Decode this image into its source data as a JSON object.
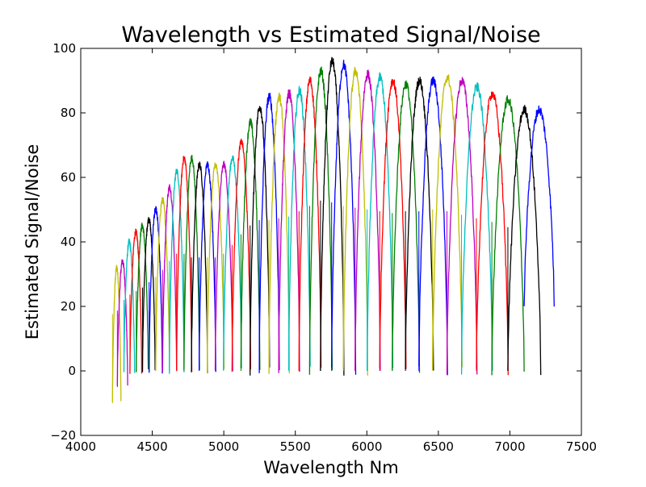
{
  "chart_data": {
    "type": "line",
    "title": "Wavelength vs Estimated Signal/Noise",
    "xlabel": "Wavelength Nm",
    "ylabel": "Estimated Signal/Noise",
    "xlim": [
      4000,
      7500
    ],
    "ylim": [
      -20,
      100
    ],
    "x_ticks": [
      "4000",
      "4500",
      "5000",
      "5500",
      "6000",
      "6500",
      "7000",
      "7500"
    ],
    "y_ticks": [
      "−20",
      "0",
      "20",
      "40",
      "60",
      "80",
      "100"
    ],
    "grid": false,
    "legend": "none",
    "color_cycle": [
      "#bfbf00",
      "#bf00bf",
      "#00bfbf",
      "#ff0000",
      "#008000",
      "#000000",
      "#0000ff"
    ],
    "orders": [
      {
        "start": 4222,
        "end": 4281,
        "peak": 32,
        "min": -10
      },
      {
        "start": 4256,
        "end": 4328,
        "peak": 34,
        "min": -5
      },
      {
        "start": 4302,
        "end": 4376,
        "peak": 40,
        "min": 0
      },
      {
        "start": 4344,
        "end": 4426,
        "peak": 43,
        "min": 0
      },
      {
        "start": 4388,
        "end": 4472,
        "peak": 45,
        "min": 0
      },
      {
        "start": 4432,
        "end": 4520,
        "peak": 47,
        "min": 0
      },
      {
        "start": 4478,
        "end": 4570,
        "peak": 50,
        "min": 0
      },
      {
        "start": 4524,
        "end": 4620,
        "peak": 53,
        "min": 0
      },
      {
        "start": 4572,
        "end": 4670,
        "peak": 57,
        "min": 0
      },
      {
        "start": 4620,
        "end": 4722,
        "peak": 62,
        "min": 0
      },
      {
        "start": 4670,
        "end": 4776,
        "peak": 66,
        "min": 0
      },
      {
        "start": 4722,
        "end": 4830,
        "peak": 66,
        "min": 0
      },
      {
        "start": 4774,
        "end": 4886,
        "peak": 64,
        "min": 0
      },
      {
        "start": 4828,
        "end": 4944,
        "peak": 64,
        "min": 0
      },
      {
        "start": 4884,
        "end": 5002,
        "peak": 64,
        "min": 0
      },
      {
        "start": 4940,
        "end": 5062,
        "peak": 64,
        "min": 0
      },
      {
        "start": 4998,
        "end": 5124,
        "peak": 66,
        "min": 0
      },
      {
        "start": 5058,
        "end": 5188,
        "peak": 71,
        "min": 0
      },
      {
        "start": 5120,
        "end": 5252,
        "peak": 77,
        "min": 0
      },
      {
        "start": 5184,
        "end": 5320,
        "peak": 82,
        "min": 0
      },
      {
        "start": 5248,
        "end": 5388,
        "peak": 85,
        "min": 0
      },
      {
        "start": 5316,
        "end": 5458,
        "peak": 85,
        "min": 0
      },
      {
        "start": 5384,
        "end": 5530,
        "peak": 86,
        "min": 0
      },
      {
        "start": 5454,
        "end": 5604,
        "peak": 87,
        "min": 0
      },
      {
        "start": 5526,
        "end": 5680,
        "peak": 90,
        "min": 0
      },
      {
        "start": 5600,
        "end": 5758,
        "peak": 93,
        "min": 0
      },
      {
        "start": 5676,
        "end": 5840,
        "peak": 96,
        "min": 0
      },
      {
        "start": 5754,
        "end": 5922,
        "peak": 95,
        "min": 0
      },
      {
        "start": 5836,
        "end": 6006,
        "peak": 93,
        "min": 0
      },
      {
        "start": 5918,
        "end": 6094,
        "peak": 92,
        "min": 0
      },
      {
        "start": 6002,
        "end": 6182,
        "peak": 91,
        "min": 0
      },
      {
        "start": 6090,
        "end": 6274,
        "peak": 90,
        "min": 0
      },
      {
        "start": 6178,
        "end": 6368,
        "peak": 89,
        "min": 0
      },
      {
        "start": 6270,
        "end": 6466,
        "peak": 90,
        "min": 0
      },
      {
        "start": 6364,
        "end": 6564,
        "peak": 90,
        "min": 0
      },
      {
        "start": 6460,
        "end": 6666,
        "peak": 91,
        "min": 0
      },
      {
        "start": 6560,
        "end": 6770,
        "peak": 90,
        "min": 0
      },
      {
        "start": 6662,
        "end": 6878,
        "peak": 88,
        "min": 0
      },
      {
        "start": 6766,
        "end": 6988,
        "peak": 86,
        "min": 0
      },
      {
        "start": 6874,
        "end": 7100,
        "peak": 84,
        "min": 0
      },
      {
        "start": 6986,
        "end": 7216,
        "peak": 81,
        "min": 0
      },
      {
        "start": 7100,
        "end": 7310,
        "peak": 81,
        "min": 19
      }
    ]
  }
}
